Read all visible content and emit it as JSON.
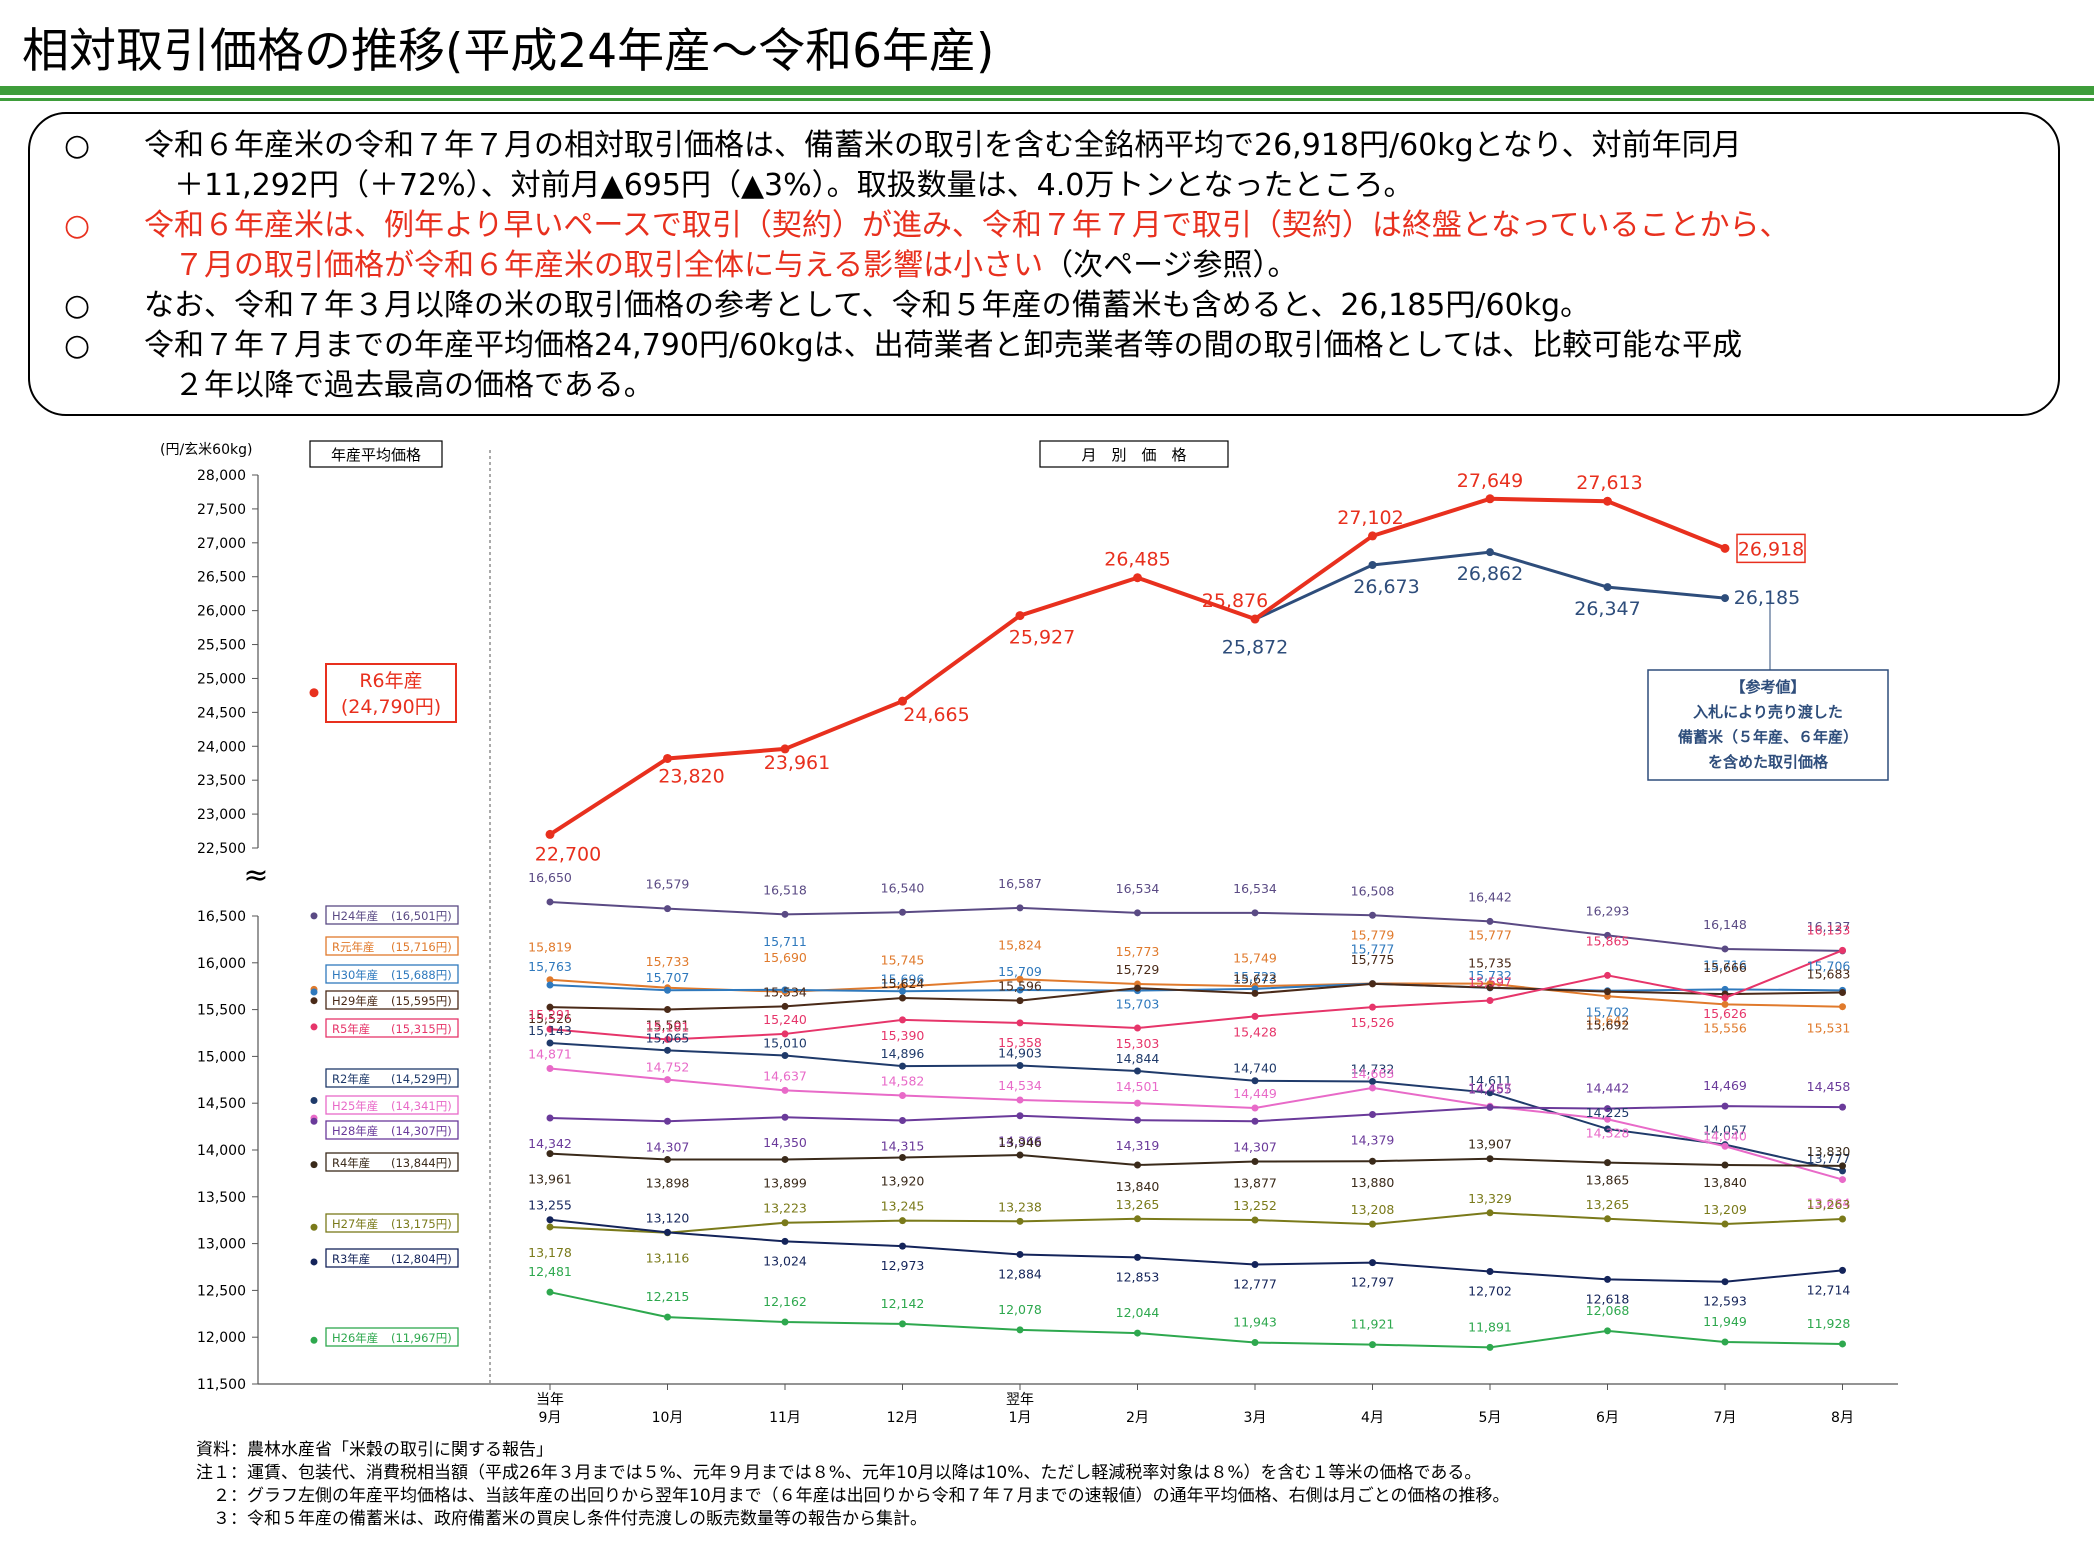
{
  "title": "相対取引価格の推移(平成24年産～令和6年産)",
  "summary": [
    {
      "mark": "○",
      "color": "#000000",
      "lines": [
        "令和６年産米の令和７年７月の相対取引価格は、備蓄米の取引を含む全銘柄平均で26,918円/60kgとなり、対前年同月",
        "＋11,292円（＋72%）、対前月▲695円（▲3%）。取扱数量は、4.0万トンとなったところ。"
      ]
    },
    {
      "mark": "○",
      "color": "#e8301e",
      "lines": [
        "令和６年産米は、例年より早いペースで取引（契約）が進み、令和７年７月で取引（契約）は終盤となっていることから、",
        "７月の取引価格が令和６年産米の取引全体に与える影響は小さい"
      ],
      "tail": "（次ページ参照）。"
    },
    {
      "mark": "○",
      "color": "#000000",
      "lines": [
        "なお、令和７年３月以降の米の取引価格の参考として、令和５年産の備蓄米も含めると、26,185円/60kg。"
      ]
    },
    {
      "mark": "○",
      "color": "#000000",
      "lines": [
        "令和７年７月までの年産平均価格24,790円/60kgは、出荷業者と卸売業者等の間の取引価格としては、比較可能な平成",
        "２年以降で過去最高の価格である。"
      ]
    }
  ],
  "chart_data": {
    "type": "line",
    "unit_label": "(円/玄米60kg)",
    "left_panel_label": "年産平均価格",
    "right_panel_label": "月　別　価　格",
    "break_mark": "≈",
    "upper_axis": {
      "ticks": [
        "22,500",
        "23,000",
        "23,500",
        "24,000",
        "24,500",
        "25,000",
        "25,500",
        "26,000",
        "26,500",
        "27,000",
        "27,500",
        "28,000"
      ],
      "ylim": [
        22500,
        28000
      ]
    },
    "lower_axis": {
      "ticks": [
        "11,500",
        "12,000",
        "12,500",
        "13,000",
        "13,500",
        "14,000",
        "14,500",
        "15,000",
        "15,500",
        "16,000",
        "16,500"
      ],
      "ylim": [
        11500,
        16500
      ]
    },
    "x_labels": [
      {
        "top": "当年",
        "bottom": "9月"
      },
      {
        "top": "",
        "bottom": "10月"
      },
      {
        "top": "",
        "bottom": "11月"
      },
      {
        "top": "",
        "bottom": "12月"
      },
      {
        "top": "翌年",
        "bottom": "1月"
      },
      {
        "top": "",
        "bottom": "2月"
      },
      {
        "top": "",
        "bottom": "3月"
      },
      {
        "top": "",
        "bottom": "4月"
      },
      {
        "top": "",
        "bottom": "5月"
      },
      {
        "top": "",
        "bottom": "6月"
      },
      {
        "top": "",
        "bottom": "7月"
      },
      {
        "top": "",
        "bottom": "8月"
      }
    ],
    "upper_series": [
      {
        "name": "R6年産",
        "avg_label": "(24,790円)",
        "avg": 24790,
        "color": "#e8301e",
        "values": [
          22700,
          23820,
          23961,
          24665,
          25927,
          26485,
          25876,
          27102,
          27649,
          27613,
          26918,
          null
        ],
        "labels": [
          "22,700",
          "23,820",
          "23,961",
          "24,665",
          "25,927",
          "26,485",
          "25,876",
          "27,102",
          "27,649",
          "27,613",
          "26,918",
          ""
        ]
      },
      {
        "name": "",
        "color": "#2e4d7b",
        "values": [
          null,
          null,
          null,
          null,
          null,
          null,
          25872,
          26673,
          26862,
          26347,
          26185,
          null
        ],
        "labels": [
          "",
          "",
          "",
          "",
          "",
          "",
          "25,872",
          "26,673",
          "26,862",
          "26,347",
          "26,185",
          ""
        ]
      }
    ],
    "reference_note": [
      "【参考値】",
      "入札により売り渡した",
      "備蓄米（５年産、６年産）",
      "を含めた取引価格"
    ],
    "lower_series": [
      {
        "name": "H24年産",
        "avg_label": "(16,501円)",
        "avg": 16501,
        "color": "#5a4a84",
        "values": [
          16650,
          16579,
          16518,
          16540,
          16587,
          16534,
          16534,
          16508,
          16442,
          16293,
          16148,
          16127
        ],
        "labels": [
          "16,650",
          "16,579",
          "16,518",
          "16,540",
          "16,587",
          "16,534",
          "16,534",
          "16,508",
          "16,442",
          "16,293",
          "16,148",
          "16,127"
        ]
      },
      {
        "name": "R元年産",
        "avg_label": "(15,716円)",
        "avg": 15716,
        "color": "#e07a2c",
        "values": [
          15819,
          15733,
          15690,
          15745,
          15824,
          15773,
          15749,
          15779,
          15777,
          15642,
          15556,
          15531
        ],
        "labels": [
          "15,819",
          "15,733",
          "15,690",
          "15,745",
          "15,824",
          "15,773",
          "15,749",
          "15,779",
          "15,777",
          "15,642",
          "15,556",
          "15,531"
        ]
      },
      {
        "name": "H30年産",
        "avg_label": "(15,688円)",
        "avg": 15688,
        "color": "#2f79bd",
        "values": [
          15763,
          15707,
          15711,
          15696,
          15709,
          15703,
          15722,
          15777,
          15732,
          15702,
          15716,
          15706
        ],
        "labels": [
          "15,763",
          "15,707",
          "15,711",
          "15,696",
          "15,709",
          "15,703",
          "15,722",
          "15,777",
          "15,732",
          "15,702",
          "15,716",
          "15,706"
        ]
      },
      {
        "name": "H29年産",
        "avg_label": "(15,595円)",
        "avg": 15595,
        "color": "#4a2a18",
        "values": [
          15526,
          15501,
          15534,
          15624,
          15596,
          15729,
          15673,
          15775,
          15735,
          15692,
          15666,
          15683
        ],
        "labels": [
          "15,526",
          "15,501",
          "15,534",
          "15,624",
          "15,596",
          "15,729",
          "15,673",
          "15,775",
          "15,735",
          "15,692",
          "15,666",
          "15,683"
        ]
      },
      {
        "name": "R5年産",
        "avg_label": "(15,315円)",
        "avg": 15315,
        "color": "#e6356a",
        "values": [
          15291,
          15181,
          15240,
          15390,
          15358,
          15303,
          15428,
          15526,
          15597,
          15865,
          15626,
          16133
        ],
        "labels": [
          "15,291",
          "15,181",
          "15,240",
          "15,390",
          "15,358",
          "15,303",
          "15,428",
          "15,526",
          "15,597",
          "15,865",
          "15,626",
          "16,133"
        ]
      },
      {
        "name": "R2年産",
        "avg_label": "(14,529円)",
        "avg": 14529,
        "color": "#1f3a6a",
        "values": [
          15143,
          15065,
          15010,
          14896,
          14903,
          14844,
          14740,
          14732,
          14611,
          14225,
          14057,
          13777
        ],
        "labels": [
          "15,143",
          "15,065",
          "15,010",
          "14,896",
          "14,903",
          "14,844",
          "14,740",
          "14,732",
          "14,611",
          "14,225",
          "14,057",
          "13,777"
        ]
      },
      {
        "name": "H25年産",
        "avg_label": "(14,341円)",
        "avg": 14341,
        "color": "#e86ac8",
        "values": [
          14871,
          14752,
          14637,
          14582,
          14534,
          14501,
          14449,
          14663,
          14467,
          14328,
          14040,
          13684
        ],
        "labels": [
          "14,871",
          "14,752",
          "14,637",
          "14,582",
          "14,534",
          "14,501",
          "14,449",
          "14,663",
          "14,467",
          "14,328",
          "14,040",
          "13,684"
        ]
      },
      {
        "name": "H28年産",
        "avg_label": "(14,307円)",
        "avg": 14307,
        "color": "#6a3a9a",
        "values": [
          14342,
          14307,
          14350,
          14315,
          14366,
          14319,
          14307,
          14379,
          14455,
          14442,
          14469,
          14458
        ],
        "labels": [
          "14,342",
          "14,307",
          "14,350",
          "14,315",
          "14,366",
          "14,319",
          "14,307",
          "14,379",
          "14,455",
          "14,442",
          "14,469",
          "14,458"
        ]
      },
      {
        "name": "R4年産",
        "avg_label": "(13,844円)",
        "avg": 13844,
        "color": "#3a2a1a",
        "values": [
          13961,
          13898,
          13899,
          13920,
          13946,
          13840,
          13877,
          13880,
          13907,
          13865,
          13840,
          13830
        ],
        "labels": [
          "13,961",
          "13,898",
          "13,899",
          "13,920",
          "13,946",
          "13,840",
          "13,877",
          "13,880",
          "13,907",
          "13,865",
          "13,840",
          "13,830"
        ]
      },
      {
        "name": "H27年産",
        "avg_label": "(13,175円)",
        "avg": 13175,
        "color": "#7a7a1a",
        "values": [
          13178,
          13116,
          13223,
          13245,
          13238,
          13265,
          13252,
          13208,
          13329,
          13265,
          13209,
          13263
        ],
        "labels": [
          "13,178",
          "13,116",
          "13,223",
          "13,245",
          "13,238",
          "13,265",
          "13,252",
          "13,208",
          "13,329",
          "13,265",
          "13,209",
          "13,263"
        ]
      },
      {
        "name": "R3年産",
        "avg_label": "(12,804円)",
        "avg": 12804,
        "color": "#14245a",
        "values": [
          13255,
          13120,
          13024,
          12973,
          12884,
          12853,
          12777,
          12797,
          12702,
          12618,
          12593,
          12714
        ],
        "labels": [
          "13,255",
          "13,120",
          "13,024",
          "12,973",
          "12,884",
          "12,853",
          "12,777",
          "12,797",
          "12,702",
          "12,618",
          "12,593",
          "12,714"
        ]
      },
      {
        "name": "H26年産",
        "avg_label": "(11,967円)",
        "avg": 11967,
        "color": "#2ea84e",
        "values": [
          12481,
          12215,
          12162,
          12142,
          12078,
          12044,
          11943,
          11921,
          11891,
          12068,
          11949,
          11928
        ],
        "labels": [
          "12,481",
          "12,215",
          "12,162",
          "12,142",
          "12,078",
          "12,044",
          "11,943",
          "11,921",
          "11,891",
          "12,068",
          "11,949",
          "11,928"
        ]
      }
    ]
  },
  "notes": [
    "資料：農林水産省「米穀の取引に関する報告」",
    "注１：運賃、包装代、消費税相当額（平成26年３月までは５%、元年９月までは８%、元年10月以降は10%、ただし軽減税率対象は８%）を含む１等米の価格である。",
    "　２：グラフ左側の年産平均価格は、当該年産の出回りから翌年10月まで（６年産は出回りから令和７年７月までの速報値）の通年平均価格、右側は月ごとの価格の推移。",
    "　３：令和５年産の備蓄米は、政府備蓄米の買戻し条件付売渡しの販売数量等の報告から集計。"
  ]
}
